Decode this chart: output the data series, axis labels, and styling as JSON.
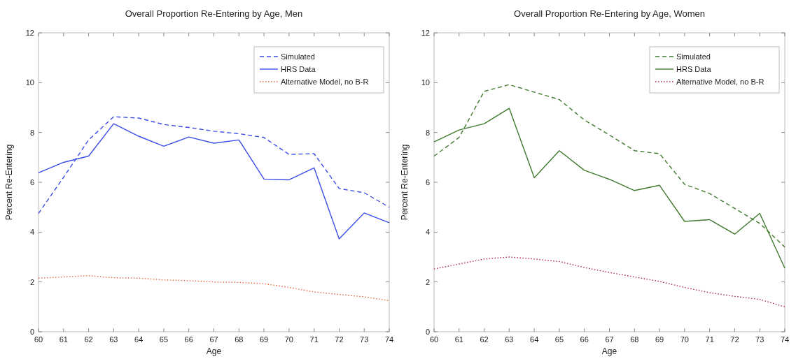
{
  "chart_data": [
    {
      "type": "line",
      "title": "Overall Proportion Re-Entering by Age, Men",
      "xlabel": "Age",
      "ylabel": "Percent Re-Entering",
      "x": [
        60,
        61,
        62,
        63,
        64,
        65,
        66,
        67,
        68,
        69,
        70,
        71,
        72,
        73,
        74
      ],
      "xlim": [
        60,
        74
      ],
      "xticks": [
        60,
        61,
        62,
        63,
        64,
        65,
        66,
        67,
        68,
        69,
        70,
        71,
        72,
        73,
        74
      ],
      "ylim": [
        0,
        12
      ],
      "yticks": [
        0,
        2,
        4,
        6,
        8,
        10,
        12
      ],
      "grid": false,
      "legend": "top right",
      "series": [
        {
          "name": "Simulated",
          "color": "#3b4ce8",
          "line_style": "dashed",
          "values": [
            4.75,
            6.2,
            7.7,
            8.63,
            8.58,
            8.32,
            8.2,
            8.05,
            7.95,
            7.8,
            7.12,
            7.15,
            5.75,
            5.58,
            5.0
          ]
        },
        {
          "name": "HRS Data",
          "color": "#3b4ce8",
          "line_style": "solid",
          "values": [
            6.38,
            6.8,
            7.05,
            8.35,
            7.85,
            7.45,
            7.82,
            7.57,
            7.7,
            6.13,
            6.1,
            6.58,
            3.73,
            4.77,
            4.38
          ]
        },
        {
          "name": "Alternative Model, no B-R",
          "color": "#e8643a",
          "line_style": "dotted",
          "values": [
            2.15,
            2.2,
            2.25,
            2.17,
            2.15,
            2.08,
            2.05,
            2.0,
            1.98,
            1.93,
            1.78,
            1.6,
            1.5,
            1.4,
            1.25
          ]
        }
      ]
    },
    {
      "type": "line",
      "title": "Overall Proportion Re-Entering by Age, Women",
      "xlabel": "Age",
      "ylabel": "Percent Re-Entering",
      "x": [
        60,
        61,
        62,
        63,
        64,
        65,
        66,
        67,
        68,
        69,
        70,
        71,
        72,
        73,
        74
      ],
      "xlim": [
        60,
        74
      ],
      "xticks": [
        60,
        61,
        62,
        63,
        64,
        65,
        66,
        67,
        68,
        69,
        70,
        71,
        72,
        73,
        74
      ],
      "ylim": [
        0,
        12
      ],
      "yticks": [
        0,
        2,
        4,
        6,
        8,
        10,
        12
      ],
      "grid": false,
      "legend": "top right",
      "series": [
        {
          "name": "Simulated",
          "color": "#3f7a2e",
          "line_style": "dashed",
          "values": [
            7.05,
            7.8,
            9.65,
            9.92,
            9.62,
            9.32,
            8.5,
            7.9,
            7.27,
            7.15,
            5.92,
            5.55,
            4.95,
            4.35,
            3.4
          ]
        },
        {
          "name": "HRS Data",
          "color": "#3f7a2e",
          "line_style": "solid",
          "values": [
            7.62,
            8.1,
            8.35,
            8.97,
            6.18,
            7.27,
            6.48,
            6.12,
            5.67,
            5.88,
            4.43,
            4.5,
            3.92,
            4.75,
            2.55
          ]
        },
        {
          "name": "Alternative Model, no B-R",
          "color": "#b0206a",
          "line_style": "dotted",
          "values": [
            2.52,
            2.72,
            2.92,
            3.0,
            2.92,
            2.82,
            2.58,
            2.38,
            2.2,
            2.02,
            1.78,
            1.57,
            1.42,
            1.3,
            1.0
          ]
        }
      ]
    }
  ]
}
